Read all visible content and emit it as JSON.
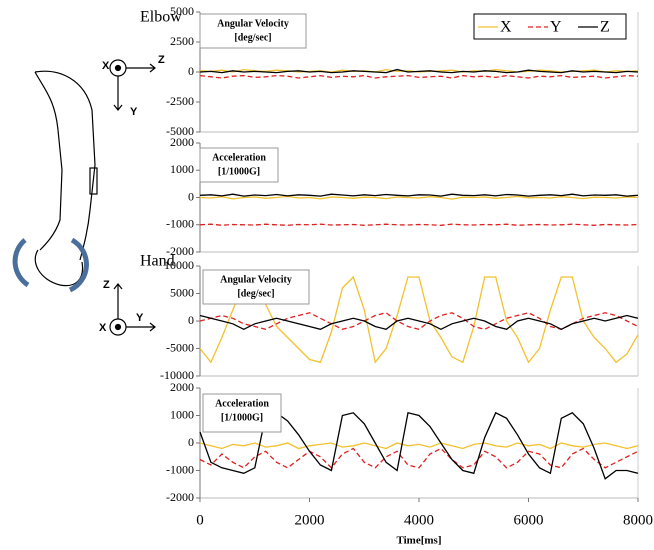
{
  "diagram": {
    "elbow_axes": [
      "X",
      "Z",
      "Y"
    ],
    "hand_axes": [
      "Z",
      "X",
      "Y"
    ]
  },
  "chart_data": [
    {
      "type": "line",
      "panel_label": "Elbow",
      "title": [
        "Angular Velocity",
        "[deg/sec]"
      ],
      "legend": "upper right",
      "xlim": [
        0,
        8000
      ],
      "ylim": [
        -5000,
        5000
      ],
      "yticks": [
        -5000,
        -2500,
        0,
        2500,
        5000
      ],
      "x": [
        0,
        200,
        400,
        600,
        800,
        1000,
        1200,
        1400,
        1600,
        1800,
        2000,
        2200,
        2400,
        2600,
        2800,
        3000,
        3200,
        3400,
        3600,
        3800,
        4000,
        4200,
        4400,
        4600,
        4800,
        5000,
        5200,
        5400,
        5600,
        5800,
        6000,
        6200,
        6400,
        6600,
        6800,
        7000,
        7200,
        7400,
        7600,
        7800,
        8000
      ],
      "series": [
        {
          "name": "X",
          "color": "#f2c12e",
          "dash": false,
          "values": [
            100,
            50,
            150,
            0,
            200,
            100,
            50,
            150,
            100,
            0,
            50,
            100,
            0,
            150,
            50,
            100,
            0,
            200,
            50,
            100,
            0,
            50,
            100,
            150,
            0,
            100,
            50,
            200,
            100,
            0,
            50,
            150,
            100,
            0,
            50,
            100,
            150,
            0,
            100,
            50,
            100
          ]
        },
        {
          "name": "Y",
          "color": "#e02020",
          "dash": true,
          "values": [
            -300,
            -400,
            -500,
            -350,
            -300,
            -450,
            -400,
            -300,
            -350,
            -500,
            -400,
            -300,
            -450,
            -350,
            -400,
            -300,
            -500,
            -400,
            -350,
            -300,
            -450,
            -400,
            -350,
            -500,
            -300,
            -400,
            -350,
            -450,
            -300,
            -400,
            -500,
            -350,
            -400,
            -300,
            -450,
            -400,
            -350,
            -500,
            -400,
            -300,
            -350
          ]
        },
        {
          "name": "Z",
          "color": "#000000",
          "dash": false,
          "values": [
            0,
            50,
            -50,
            100,
            0,
            50,
            0,
            -50,
            50,
            100,
            0,
            50,
            -50,
            0,
            100,
            50,
            0,
            -50,
            200,
            0,
            50,
            100,
            0,
            -50,
            50,
            0,
            100,
            50,
            -50,
            0,
            150,
            50,
            0,
            -50,
            100,
            0,
            50,
            0,
            -50,
            50,
            0
          ]
        }
      ]
    },
    {
      "type": "line",
      "title": [
        "Acceleration",
        "[1/1000G]"
      ],
      "xlim": [
        0,
        8000
      ],
      "ylim": [
        -2000,
        2000
      ],
      "yticks": [
        -2000,
        -1000,
        0,
        1000,
        2000
      ],
      "x": [
        0,
        200,
        400,
        600,
        800,
        1000,
        1200,
        1400,
        1600,
        1800,
        2000,
        2200,
        2400,
        2600,
        2800,
        3000,
        3200,
        3400,
        3600,
        3800,
        4000,
        4200,
        4400,
        4600,
        4800,
        5000,
        5200,
        5400,
        5600,
        5800,
        6000,
        6200,
        6400,
        6600,
        6800,
        7000,
        7200,
        7400,
        7600,
        7800,
        8000
      ],
      "series": [
        {
          "name": "X",
          "color": "#f2c12e",
          "dash": false,
          "values": [
            0,
            -20,
            30,
            -50,
            0,
            20,
            -30,
            0,
            40,
            -20,
            0,
            -50,
            20,
            0,
            -30,
            10,
            0,
            -40,
            20,
            0,
            -20,
            30,
            0,
            -60,
            10,
            0,
            20,
            -30,
            0,
            40,
            -10,
            0,
            -20,
            30,
            0,
            -40,
            10,
            0,
            -20,
            20,
            0
          ]
        },
        {
          "name": "Y",
          "color": "#e02020",
          "dash": true,
          "values": [
            -1000,
            -980,
            -1020,
            -990,
            -1000,
            -1010,
            -980,
            -1000,
            -1020,
            -990,
            -1000,
            -980,
            -1010,
            -1000,
            -990,
            -1020,
            -1000,
            -980,
            -1000,
            -1010,
            -990,
            -1000,
            -1020,
            -980,
            -1000,
            -1010,
            -990,
            -1000,
            -980,
            -1020,
            -1000,
            -990,
            -1010,
            -1000,
            -980,
            -1000,
            -1020,
            -990,
            -1000,
            -1010,
            -990
          ]
        },
        {
          "name": "Z",
          "color": "#000000",
          "dash": false,
          "values": [
            80,
            100,
            60,
            120,
            50,
            90,
            70,
            110,
            60,
            100,
            80,
            50,
            120,
            90,
            60,
            100,
            70,
            110,
            80,
            60,
            100,
            90,
            50,
            120,
            80,
            70,
            100,
            60,
            110,
            90,
            50,
            80,
            100,
            70,
            120,
            60,
            90,
            80,
            100,
            50,
            80
          ]
        }
      ]
    },
    {
      "type": "line",
      "panel_label": "Hand",
      "title": [
        "Angular Velocity",
        "[deg/sec]"
      ],
      "xlim": [
        0,
        8000
      ],
      "ylim": [
        -10000,
        10000
      ],
      "yticks": [
        -10000,
        -5000,
        0,
        5000,
        10000
      ],
      "x": [
        0,
        200,
        400,
        600,
        800,
        1000,
        1200,
        1400,
        1600,
        1800,
        2000,
        2200,
        2400,
        2600,
        2800,
        3000,
        3200,
        3400,
        3600,
        3800,
        4000,
        4200,
        4400,
        4600,
        4800,
        5000,
        5200,
        5400,
        5600,
        5800,
        6000,
        6200,
        6400,
        6600,
        6800,
        7000,
        7200,
        7400,
        7600,
        7800,
        8000
      ],
      "series": [
        {
          "name": "X",
          "color": "#f2c12e",
          "dash": false,
          "values": [
            -5000,
            -7500,
            -3000,
            2000,
            7000,
            8000,
            3000,
            -1000,
            -3000,
            -5000,
            -7000,
            -7500,
            -2000,
            6000,
            8000,
            2000,
            -7500,
            -5000,
            1000,
            8000,
            8000,
            0,
            -3000,
            -6500,
            -7500,
            -1000,
            8000,
            8000,
            0,
            -3000,
            -7500,
            -5000,
            2000,
            8000,
            8000,
            0,
            -3000,
            -5000,
            -7500,
            -6000,
            -2500
          ]
        },
        {
          "name": "Y",
          "color": "#e02020",
          "dash": true,
          "values": [
            0,
            500,
            1000,
            500,
            -500,
            -1000,
            -1500,
            -500,
            500,
            1000,
            1500,
            500,
            -500,
            -1500,
            -1000,
            0,
            1000,
            1500,
            0,
            -1000,
            -1500,
            0,
            1000,
            1500,
            500,
            -1000,
            -1500,
            -500,
            500,
            1000,
            1500,
            500,
            -1000,
            -1500,
            -500,
            500,
            1000,
            1500,
            1000,
            0,
            -1000
          ]
        },
        {
          "name": "Z",
          "color": "#000000",
          "dash": false,
          "values": [
            1000,
            500,
            0,
            -500,
            -1500,
            -500,
            0,
            500,
            0,
            -500,
            -1000,
            -1500,
            -500,
            0,
            500,
            0,
            -1000,
            -1500,
            0,
            500,
            0,
            -500,
            -1500,
            -500,
            0,
            500,
            0,
            -1000,
            -1500,
            0,
            500,
            0,
            -500,
            -1500,
            -500,
            0,
            500,
            0,
            500,
            1000,
            500
          ]
        }
      ]
    },
    {
      "type": "line",
      "title": [
        "Acceleration",
        "[1/1000G]"
      ],
      "xlabel": "Time[ms]",
      "xlim": [
        0,
        8000
      ],
      "xticks": [
        0,
        2000,
        4000,
        6000,
        8000
      ],
      "ylim": [
        -2000,
        2000
      ],
      "yticks": [
        -2000,
        -1000,
        0,
        1000,
        2000
      ],
      "x": [
        0,
        200,
        400,
        600,
        800,
        1000,
        1200,
        1400,
        1600,
        1800,
        2000,
        2200,
        2400,
        2600,
        2800,
        3000,
        3200,
        3400,
        3600,
        3800,
        4000,
        4200,
        4400,
        4600,
        4800,
        5000,
        5200,
        5400,
        5600,
        5800,
        6000,
        6200,
        6400,
        6600,
        6800,
        7000,
        7200,
        7400,
        7600,
        7800,
        8000
      ],
      "series": [
        {
          "name": "X",
          "color": "#f2c12e",
          "dash": false,
          "values": [
            0,
            -100,
            -200,
            -50,
            -100,
            0,
            -150,
            -100,
            0,
            -200,
            -100,
            -50,
            0,
            -150,
            -100,
            0,
            -100,
            -200,
            0,
            -100,
            -50,
            -150,
            0,
            -100,
            -200,
            -50,
            0,
            -100,
            -150,
            0,
            -100,
            -50,
            -200,
            0,
            -100,
            -150,
            -50,
            0,
            -100,
            -200,
            -100
          ]
        },
        {
          "name": "Y",
          "color": "#e02020",
          "dash": true,
          "values": [
            -600,
            -800,
            -400,
            -700,
            -900,
            -500,
            -300,
            -700,
            -900,
            -600,
            -300,
            -500,
            -900,
            -400,
            -200,
            -700,
            -900,
            -500,
            -300,
            -800,
            -900,
            -400,
            -200,
            -600,
            -900,
            -800,
            -300,
            -500,
            -900,
            -700,
            -300,
            -400,
            -800,
            -900,
            -400,
            -200,
            -600,
            -900,
            -700,
            -500,
            -300
          ]
        },
        {
          "name": "Z",
          "color": "#000000",
          "dash": false,
          "values": [
            400,
            -700,
            -900,
            -1000,
            -1100,
            -900,
            1000,
            1100,
            800,
            300,
            -300,
            -800,
            -1000,
            1000,
            1100,
            700,
            0,
            -700,
            -1000,
            1100,
            1000,
            600,
            0,
            -600,
            -1000,
            -1100,
            200,
            1100,
            900,
            300,
            -400,
            -900,
            -1100,
            900,
            1100,
            700,
            -200,
            -1300,
            -1000,
            -1000,
            -1100
          ]
        }
      ]
    }
  ]
}
